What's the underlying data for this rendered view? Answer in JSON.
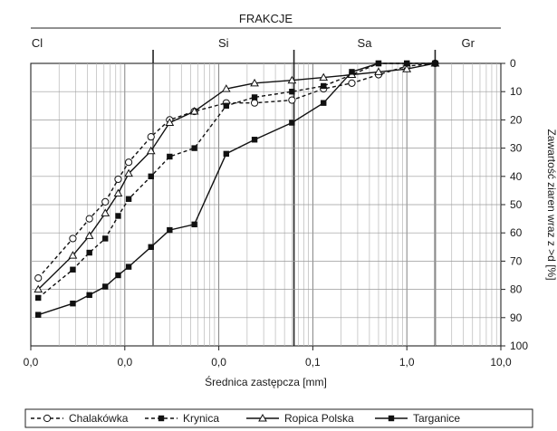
{
  "chart_data": {
    "type": "line",
    "title": "FRAKCJE",
    "xlabel": "Średnica zastępcza [mm]",
    "ylabel": "Zawartość ziaren wraz z >d [%]",
    "x_scale": "log",
    "xlim": [
      0.0001,
      10
    ],
    "ylim": [
      0,
      100
    ],
    "y_inverted": true,
    "x_tick_values": [
      0.0001,
      0.001,
      0.01,
      0.1,
      1,
      10
    ],
    "x_tick_labels": [
      "0,0",
      "0,0",
      "0,0",
      "0,1",
      "1,0",
      "10,0"
    ],
    "y_tick_labels": [
      "0",
      "10",
      "20",
      "30",
      "40",
      "50",
      "60",
      "70",
      "80",
      "90",
      "100"
    ],
    "grid": true,
    "legend_position": "bottom",
    "fractions": [
      {
        "label": "Cl",
        "from": 0.0001,
        "to": 0.002
      },
      {
        "label": "Si",
        "from": 0.002,
        "to": 0.063
      },
      {
        "label": "Sa",
        "from": 0.063,
        "to": 2
      },
      {
        "label": "Gr",
        "from": 2,
        "to": 10
      }
    ],
    "series": [
      {
        "name": "Chalakówka",
        "line": "dashed",
        "marker": "circle-open",
        "x": [
          0.00012,
          0.00028,
          0.00042,
          0.00062,
          0.00085,
          0.0011,
          0.0019,
          0.003,
          0.0055,
          0.012,
          0.024,
          0.06,
          0.13,
          0.26,
          0.5,
          1.0,
          2.0
        ],
        "y": [
          76,
          62,
          55,
          49,
          41,
          35,
          26,
          20,
          17,
          14,
          14,
          13,
          9,
          7,
          4,
          1,
          0
        ]
      },
      {
        "name": "Krynica",
        "line": "dashed",
        "marker": "square",
        "x": [
          0.00012,
          0.00028,
          0.00042,
          0.00062,
          0.00085,
          0.0011,
          0.0019,
          0.003,
          0.0055,
          0.012,
          0.024,
          0.06,
          0.13,
          0.26,
          0.5,
          1.0,
          2.0
        ],
        "y": [
          83,
          73,
          67,
          62,
          54,
          48,
          40,
          33,
          30,
          15,
          12,
          10,
          8,
          4,
          0,
          0,
          0
        ]
      },
      {
        "name": "Ropica Polska",
        "line": "solid",
        "marker": "triangle-open",
        "x": [
          0.00012,
          0.00028,
          0.00042,
          0.00062,
          0.00085,
          0.0011,
          0.0019,
          0.003,
          0.0055,
          0.012,
          0.024,
          0.06,
          0.13,
          0.26,
          0.5,
          1.0,
          2.0
        ],
        "y": [
          80,
          68,
          61,
          53,
          46,
          39,
          31,
          21,
          17,
          9,
          7,
          6,
          5,
          4,
          3,
          2,
          0
        ]
      },
      {
        "name": "Targanice",
        "line": "solid",
        "marker": "square",
        "x": [
          0.00012,
          0.00028,
          0.00042,
          0.00062,
          0.00085,
          0.0011,
          0.0019,
          0.003,
          0.0055,
          0.012,
          0.024,
          0.06,
          0.13,
          0.26,
          0.5,
          1.0,
          2.0
        ],
        "y": [
          89,
          85,
          82,
          79,
          75,
          72,
          65,
          59,
          57,
          32,
          27,
          21,
          14,
          3,
          0,
          0,
          0
        ]
      }
    ]
  }
}
